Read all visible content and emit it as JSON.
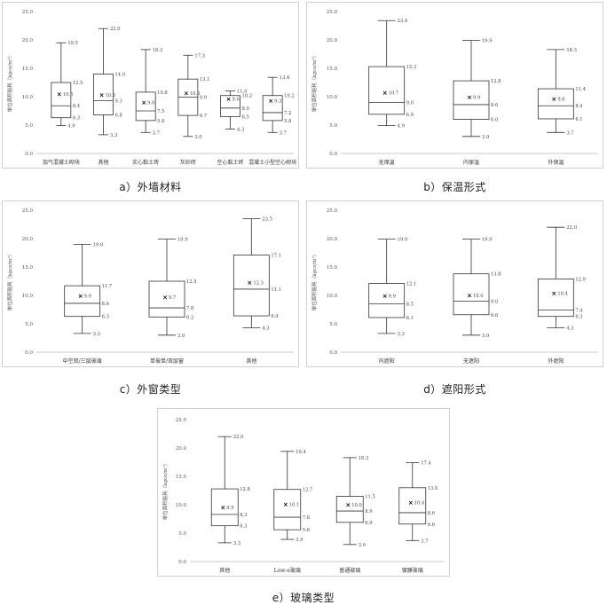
{
  "chart_data": [
    {
      "type": "box",
      "id": "a",
      "caption": "a）外墙材料",
      "ylabel": "单位面积能耗（kgce/m²）",
      "ylim": [
        0,
        25
      ],
      "yticks": [
        "0.0",
        "5.0",
        "10.0",
        "15.0",
        "20.0",
        "25.0"
      ],
      "categories": [
        "加气混凝土砌块",
        "其他",
        "实心黏土砖",
        "灰砂砖",
        "空心黏土砖",
        "混凝土小型空心砌块"
      ],
      "boxes": [
        {
          "max": 19.5,
          "q3": 12.5,
          "median": 8.4,
          "q1": 6.3,
          "min": 4.9,
          "mean": 10.5
        },
        {
          "max": 22.0,
          "q3": 14.0,
          "median": 9.3,
          "q1": 6.8,
          "min": 3.3,
          "mean": 10.3
        },
        {
          "max": 18.3,
          "q3": 10.8,
          "median": 7.5,
          "q1": 5.8,
          "min": 3.7,
          "mean": 9.0
        },
        {
          "max": 17.3,
          "q3": 13.1,
          "median": 9.9,
          "q1": 6.7,
          "min": 3.0,
          "mean": 10.6
        },
        {
          "max": 11.0,
          "q3": 10.2,
          "median": 8.0,
          "q1": 6.5,
          "min": 4.3,
          "mean": 9.6
        },
        {
          "max": 13.4,
          "q3": 10.2,
          "median": 7.2,
          "q1": 5.8,
          "min": 3.7,
          "mean": 9.3
        }
      ],
      "labels": [
        {
          "max": "19.5",
          "q3": "12.5",
          "median": "8.4",
          "q1": "6.3",
          "min": "4.9",
          "mean": "10.5"
        },
        {
          "max": "22.0",
          "q3": "14.0",
          "median": "9.3",
          "q1": "6.8",
          "min": "3.3",
          "mean": "10.3"
        },
        {
          "max": "18.3",
          "q3": "10.8",
          "median": "7.5",
          "q1": "5.8",
          "min": "3.7",
          "mean": "9.0"
        },
        {
          "max": "17.3",
          "q3": "13.1",
          "median": "9.9",
          "q1": "6.7",
          "min": "3.0",
          "mean": "10.6"
        },
        {
          "max": "11.0",
          "q3": "10.2",
          "median": "8.0",
          "q1": "6.5",
          "min": "4.3",
          "mean": "9.6"
        },
        {
          "max": "13.4",
          "q3": "10.2",
          "median": "7.2",
          "q1": "5.8",
          "min": "3.7",
          "mean": "9.3"
        }
      ]
    },
    {
      "type": "box",
      "id": "b",
      "caption": "b）保温形式",
      "ylabel": "单位面积能耗（kgce/m²）",
      "ylim": [
        0,
        25
      ],
      "yticks": [
        "0.0",
        "5.0",
        "10.0",
        "15.0",
        "20.0",
        "25.0"
      ],
      "categories": [
        "无保温",
        "内保温",
        "外保温"
      ],
      "boxes": [
        {
          "max": 23.4,
          "q3": 15.3,
          "median": 9.0,
          "q1": 6.9,
          "min": 4.9,
          "mean": 10.7
        },
        {
          "max": 19.9,
          "q3": 12.8,
          "median": 8.6,
          "q1": 6.0,
          "min": 3.0,
          "mean": 9.9
        },
        {
          "max": 18.3,
          "q3": 11.4,
          "median": 8.4,
          "q1": 6.1,
          "min": 3.7,
          "mean": 9.6
        }
      ],
      "labels": [
        {
          "max": "23.4",
          "q3": "15.3",
          "median": "9.0",
          "q1": "6.9",
          "min": "4.9",
          "mean": "10.7"
        },
        {
          "max": "19.9",
          "q3": "12.8",
          "median": "8.6",
          "q1": "6.0",
          "min": "3.0",
          "mean": "9.9"
        },
        {
          "max": "18.3",
          "q3": "11.4",
          "median": "8.4",
          "q1": "6.1",
          "min": "3.7",
          "mean": "9.6"
        }
      ]
    },
    {
      "type": "box",
      "id": "c",
      "caption": "c）外窗类型",
      "ylabel": "单位面积能耗（kgce/m²）",
      "ylim": [
        0,
        25
      ],
      "yticks": [
        "0.0",
        "5.0",
        "10.0",
        "15.0",
        "20.0",
        "25.0"
      ],
      "categories": [
        "中空双/三层玻璃",
        "单玻单/双层窗",
        "其他"
      ],
      "boxes": [
        {
          "max": 19.0,
          "q3": 11.7,
          "median": 8.6,
          "q1": 6.3,
          "min": 3.3,
          "mean": 9.9
        },
        {
          "max": 19.9,
          "q3": 12.5,
          "median": 7.8,
          "q1": 6.2,
          "min": 3.0,
          "mean": 9.7
        },
        {
          "max": 23.5,
          "q3": 17.1,
          "median": 11.1,
          "q1": 6.4,
          "min": 4.3,
          "mean": 12.3
        }
      ],
      "labels": [
        {
          "max": "19.0",
          "q3": "11.7",
          "median": "8.6",
          "q1": "6.3",
          "min": "3.3",
          "mean": "9.9"
        },
        {
          "max": "19.9",
          "q3": "12.5",
          "median": "7.8",
          "q1": "6.2",
          "min": "3.0",
          "mean": "9.7"
        },
        {
          "max": "23.5",
          "q3": "17.1",
          "median": "11.1",
          "q1": "6.4",
          "min": "4.3",
          "mean": "12.3"
        }
      ]
    },
    {
      "type": "box",
      "id": "d",
      "caption": "d）遮阳形式",
      "ylabel": "单位面积能耗（kgce/m²）",
      "ylim": [
        0,
        25
      ],
      "yticks": [
        "0.0",
        "5.0",
        "10.0",
        "15.0",
        "20.0",
        "25.0"
      ],
      "categories": [
        "内遮阳",
        "无遮阳",
        "外遮阳"
      ],
      "boxes": [
        {
          "max": 19.9,
          "q3": 12.1,
          "median": 8.5,
          "q1": 6.1,
          "min": 3.3,
          "mean": 9.9
        },
        {
          "max": 19.9,
          "q3": 13.8,
          "median": 9.0,
          "q1": 6.6,
          "min": 3.0,
          "mean": 10.0
        },
        {
          "max": 22.0,
          "q3": 12.9,
          "median": 7.4,
          "q1": 6.3,
          "min": 4.3,
          "mean": 10.4
        }
      ],
      "labels": [
        {
          "max": "19.9",
          "q3": "12.1",
          "median": "8.5",
          "q1": "6.1",
          "min": "3.3",
          "mean": "9.9"
        },
        {
          "max": "19.9",
          "q3": "13.8",
          "median": "9.0",
          "q1": "6.6",
          "min": "3.0",
          "mean": "10.0"
        },
        {
          "max": "22.0",
          "q3": "12.9",
          "median": "7.4",
          "q1": "6.3",
          "min": "4.3",
          "mean": "10.4"
        }
      ]
    },
    {
      "type": "box",
      "id": "e",
      "caption": "e）玻璃类型",
      "ylabel": "单位面积能耗（kgce/m²）",
      "ylim": [
        0,
        25
      ],
      "yticks": [
        "0.0",
        "5.0",
        "10.0",
        "15.0",
        "20.0",
        "25.0"
      ],
      "categories": [
        "其他",
        "Low-e玻璃",
        "普通玻璃",
        "镀膜玻璃"
      ],
      "boxes": [
        {
          "max": 22.0,
          "q3": 12.8,
          "median": 8.3,
          "q1": 6.3,
          "min": 3.3,
          "mean": 9.5
        },
        {
          "max": 19.4,
          "q3": 12.7,
          "median": 7.8,
          "q1": 5.6,
          "min": 3.9,
          "mean": 10.1
        },
        {
          "max": 18.3,
          "q3": 11.5,
          "median": 8.9,
          "q1": 6.9,
          "min": 3.0,
          "mean": 10.0
        },
        {
          "max": 17.4,
          "q3": 13.0,
          "median": 8.6,
          "q1": 6.6,
          "min": 3.7,
          "mean": 10.4
        }
      ],
      "labels": [
        {
          "max": "22.0",
          "q3": "12.8",
          "median": "8.3",
          "q1": "6.3",
          "min": "3.3",
          "mean": "9.5"
        },
        {
          "max": "19.4",
          "q3": "12.7",
          "median": "7.8",
          "q1": "5.6",
          "min": "3.9",
          "mean": "10.1"
        },
        {
          "max": "18.3",
          "q3": "11.5",
          "median": "8.9",
          "q1": "6.9",
          "min": "3.0",
          "mean": "10.0"
        },
        {
          "max": "17.4",
          "q3": "13.0",
          "median": "8.6",
          "q1": "6.6",
          "min": "3.7",
          "mean": "10.4"
        }
      ]
    }
  ]
}
